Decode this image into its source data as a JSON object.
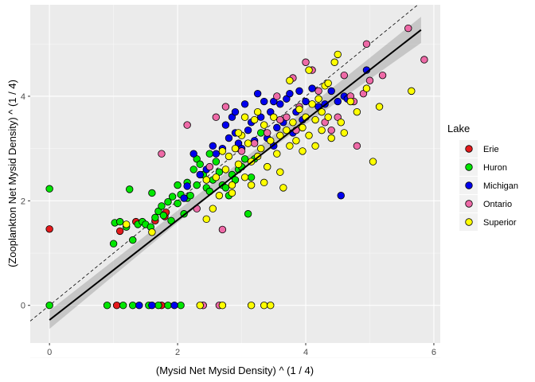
{
  "chart_data": {
    "type": "scatter",
    "title": "",
    "xlabel": "(Mysid Net Mysid Density) ^ (1 / 4)",
    "ylabel": "(Zooplankton Net Mysid Density) ^ (1 / 4)",
    "xlim": [
      -0.3,
      6.1
    ],
    "ylim": [
      -0.72,
      5.75
    ],
    "xticks": [
      0,
      2,
      4,
      6
    ],
    "yticks": [
      0,
      2,
      4
    ],
    "grid": true,
    "legend": {
      "title": "Lake",
      "placement": "right",
      "entries": [
        {
          "name": "Erie",
          "color": "#e41a1c"
        },
        {
          "name": "Huron",
          "color": "#00e600"
        },
        {
          "name": "Michigan",
          "color": "#0000ee"
        },
        {
          "name": "Ontario",
          "color": "#ee6aa7"
        },
        {
          "name": "Superior",
          "color": "#ffff00"
        }
      ]
    },
    "reference_line": {
      "style": "dashed",
      "intercept": 0,
      "slope": 1
    },
    "fit_line": {
      "x": [
        0,
        5.8
      ],
      "y": [
        -0.28,
        5.27
      ],
      "band": [
        [
          0,
          -0.45,
          -0.1
        ],
        [
          3,
          2.6,
          2.77
        ],
        [
          5.8,
          5.02,
          5.52
        ]
      ]
    },
    "series": [
      {
        "name": "Erie",
        "color": "#e41a1c",
        "points": [
          [
            0,
            1.46
          ],
          [
            1.1,
            1.42
          ],
          [
            1.35,
            1.6
          ],
          [
            1.65,
            1.62
          ],
          [
            1.8,
            1.7
          ],
          [
            1.82,
            1.78
          ],
          [
            1.05,
            0
          ],
          [
            1.75,
            0
          ]
        ]
      },
      {
        "name": "Huron",
        "color": "#00e600",
        "points": [
          [
            0,
            2.23
          ],
          [
            0,
            0
          ],
          [
            0.9,
            0
          ],
          [
            1.0,
            1.18
          ],
          [
            1.02,
            1.58
          ],
          [
            1.1,
            1.6
          ],
          [
            1.2,
            1.5
          ],
          [
            1.25,
            2.22
          ],
          [
            1.3,
            1.25
          ],
          [
            1.38,
            1.55
          ],
          [
            1.45,
            1.6
          ],
          [
            1.5,
            1.55
          ],
          [
            1.58,
            1.5
          ],
          [
            1.6,
            2.15
          ],
          [
            1.65,
            1.68
          ],
          [
            1.7,
            1.8
          ],
          [
            1.75,
            1.9
          ],
          [
            1.78,
            1.72
          ],
          [
            1.85,
            1.98
          ],
          [
            1.9,
            1.62
          ],
          [
            1.92,
            2.08
          ],
          [
            2.0,
            1.95
          ],
          [
            2.0,
            2.3
          ],
          [
            2.05,
            2.12
          ],
          [
            2.1,
            1.75
          ],
          [
            2.15,
            2.05
          ],
          [
            2.2,
            2.1
          ],
          [
            2.25,
            2.6
          ],
          [
            2.3,
            2.8
          ],
          [
            2.35,
            2.7
          ],
          [
            2.4,
            2.5
          ],
          [
            2.45,
            2.25
          ],
          [
            2.5,
            2.18
          ],
          [
            2.55,
            2.4
          ],
          [
            2.6,
            2.75
          ],
          [
            2.65,
            2.55
          ],
          [
            2.7,
            2.3
          ],
          [
            2.75,
            2.25
          ],
          [
            2.8,
            2.1
          ],
          [
            2.85,
            2.5
          ],
          [
            2.9,
            2.4
          ],
          [
            2.95,
            2.6
          ],
          [
            3.0,
            2.65
          ],
          [
            3.05,
            2.8
          ],
          [
            3.15,
            2.45
          ],
          [
            3.2,
            2.8
          ],
          [
            3.3,
            3.3
          ],
          [
            3.1,
            1.75
          ],
          [
            2.15,
            2.35
          ],
          [
            2.5,
            2.9
          ],
          [
            2.3,
            2.3
          ],
          [
            1.15,
            0
          ],
          [
            1.3,
            0
          ],
          [
            1.55,
            0
          ],
          [
            1.7,
            0
          ],
          [
            1.85,
            0
          ],
          [
            2.05,
            0
          ]
        ]
      },
      {
        "name": "Michigan",
        "color": "#0000ee",
        "points": [
          [
            1.4,
            0
          ],
          [
            1.6,
            0
          ],
          [
            1.95,
            0
          ],
          [
            2.1,
            2.05
          ],
          [
            2.15,
            2.28
          ],
          [
            2.25,
            2.9
          ],
          [
            2.35,
            2.5
          ],
          [
            2.45,
            2.6
          ],
          [
            2.55,
            3.05
          ],
          [
            2.6,
            2.9
          ],
          [
            2.7,
            3.0
          ],
          [
            2.75,
            3.45
          ],
          [
            2.8,
            3.2
          ],
          [
            2.85,
            3.6
          ],
          [
            2.9,
            3.3
          ],
          [
            2.95,
            3.1
          ],
          [
            3.0,
            3.0
          ],
          [
            3.05,
            3.85
          ],
          [
            3.1,
            3.35
          ],
          [
            3.15,
            3.5
          ],
          [
            3.2,
            3.15
          ],
          [
            3.25,
            4.05
          ],
          [
            3.3,
            3.6
          ],
          [
            3.35,
            3.9
          ],
          [
            3.4,
            3.2
          ],
          [
            3.45,
            3.7
          ],
          [
            3.5,
            3.05
          ],
          [
            3.55,
            3.4
          ],
          [
            3.6,
            3.85
          ],
          [
            3.65,
            3.5
          ],
          [
            3.7,
            3.95
          ],
          [
            3.75,
            4.05
          ],
          [
            3.8,
            3.3
          ],
          [
            3.85,
            3.7
          ],
          [
            3.9,
            4.1
          ],
          [
            3.95,
            3.55
          ],
          [
            4.0,
            3.9
          ],
          [
            4.1,
            4.15
          ],
          [
            4.2,
            3.8
          ],
          [
            4.3,
            3.85
          ],
          [
            4.4,
            4.1
          ],
          [
            4.5,
            3.9
          ],
          [
            4.6,
            4.0
          ],
          [
            4.65,
            3.95
          ],
          [
            4.95,
            4.5
          ],
          [
            4.55,
            2.1
          ],
          [
            3.5,
            3.9
          ],
          [
            2.9,
            3.7
          ]
        ]
      },
      {
        "name": "Ontario",
        "color": "#ee6aa7",
        "points": [
          [
            1.75,
            2.9
          ],
          [
            2.15,
            3.45
          ],
          [
            2.6,
            3.6
          ],
          [
            2.75,
            3.8
          ],
          [
            2.5,
            2.65
          ],
          [
            2.3,
            1.85
          ],
          [
            2.7,
            1.45
          ],
          [
            3.0,
            2.95
          ],
          [
            3.2,
            3.1
          ],
          [
            3.4,
            3.3
          ],
          [
            3.55,
            4.0
          ],
          [
            3.6,
            3.55
          ],
          [
            3.7,
            3.6
          ],
          [
            3.8,
            4.35
          ],
          [
            3.9,
            3.8
          ],
          [
            4.0,
            4.65
          ],
          [
            4.1,
            4.5
          ],
          [
            4.2,
            4.1
          ],
          [
            4.3,
            3.5
          ],
          [
            4.4,
            3.35
          ],
          [
            4.5,
            3.6
          ],
          [
            4.6,
            4.4
          ],
          [
            4.7,
            4.0
          ],
          [
            4.75,
            3.9
          ],
          [
            4.8,
            3.05
          ],
          [
            4.9,
            4.05
          ],
          [
            5.0,
            4.3
          ],
          [
            5.2,
            4.4
          ],
          [
            4.95,
            5.0
          ],
          [
            5.6,
            5.3
          ],
          [
            5.85,
            4.7
          ],
          [
            3.85,
            3.35
          ],
          [
            2.4,
            0
          ],
          [
            2.65,
            0
          ]
        ]
      },
      {
        "name": "Superior",
        "color": "#ffff00",
        "points": [
          [
            1.2,
            1.55
          ],
          [
            1.6,
            1.4
          ],
          [
            2.45,
            1.65
          ],
          [
            2.55,
            1.85
          ],
          [
            2.6,
            2.45
          ],
          [
            2.7,
            2.95
          ],
          [
            2.75,
            2.6
          ],
          [
            2.8,
            2.85
          ],
          [
            2.85,
            2.3
          ],
          [
            2.9,
            3.0
          ],
          [
            2.95,
            2.7
          ],
          [
            3.0,
            3.25
          ],
          [
            3.05,
            2.45
          ],
          [
            3.1,
            3.1
          ],
          [
            3.15,
            2.75
          ],
          [
            3.2,
            3.55
          ],
          [
            3.25,
            2.85
          ],
          [
            3.3,
            3.0
          ],
          [
            3.35,
            3.45
          ],
          [
            3.4,
            2.65
          ],
          [
            3.45,
            3.15
          ],
          [
            3.5,
            3.6
          ],
          [
            3.55,
            2.9
          ],
          [
            3.6,
            3.25
          ],
          [
            3.65,
            2.25
          ],
          [
            3.7,
            3.35
          ],
          [
            3.75,
            3.05
          ],
          [
            3.8,
            3.5
          ],
          [
            3.85,
            3.15
          ],
          [
            3.9,
            3.75
          ],
          [
            3.95,
            3.4
          ],
          [
            4.0,
            3.6
          ],
          [
            4.05,
            3.25
          ],
          [
            4.1,
            3.85
          ],
          [
            4.15,
            3.55
          ],
          [
            4.2,
            3.95
          ],
          [
            4.25,
            3.35
          ],
          [
            4.3,
            4.2
          ],
          [
            4.35,
            3.6
          ],
          [
            4.4,
            3.2
          ],
          [
            4.45,
            4.65
          ],
          [
            4.5,
            4.8
          ],
          [
            4.55,
            3.5
          ],
          [
            4.6,
            3.3
          ],
          [
            4.7,
            3.9
          ],
          [
            4.8,
            3.7
          ],
          [
            4.95,
            4.15
          ],
          [
            5.05,
            2.75
          ],
          [
            5.15,
            3.8
          ],
          [
            5.65,
            4.1
          ],
          [
            2.45,
            2.4
          ],
          [
            2.65,
            2.1
          ],
          [
            2.85,
            2.15
          ],
          [
            3.15,
            2.3
          ],
          [
            3.35,
            2.35
          ],
          [
            3.6,
            2.55
          ],
          [
            3.95,
            2.95
          ],
          [
            4.15,
            3.05
          ],
          [
            4.25,
            3.7
          ],
          [
            4.35,
            4.25
          ],
          [
            2.35,
            0
          ],
          [
            2.7,
            0
          ],
          [
            3.15,
            0
          ],
          [
            3.35,
            0
          ],
          [
            3.45,
            0
          ],
          [
            3.25,
            3.7
          ],
          [
            3.05,
            3.6
          ],
          [
            2.95,
            3.3
          ],
          [
            3.75,
            4.3
          ],
          [
            4.05,
            4.5
          ]
        ]
      }
    ]
  }
}
